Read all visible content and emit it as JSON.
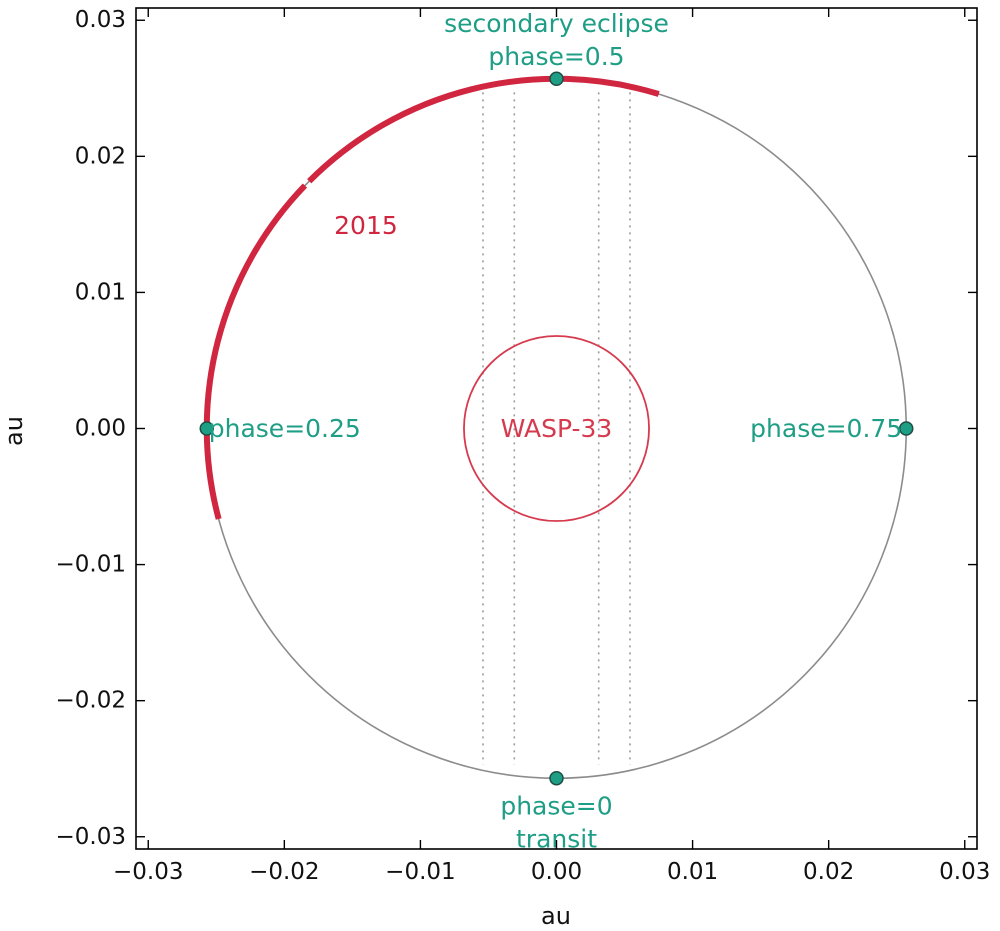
{
  "chart_data": {
    "type": "scatter",
    "xlabel": "au",
    "ylabel": "au",
    "xlim": [
      -0.0309,
      0.0309
    ],
    "ylim": [
      -0.0309,
      0.0309
    ],
    "x_ticks": [
      -0.03,
      -0.02,
      -0.01,
      0.0,
      0.01,
      0.02,
      0.03
    ],
    "x_tick_labels": [
      "−0.03",
      "−0.02",
      "−0.01",
      "0.00",
      "0.01",
      "0.02",
      "0.03"
    ],
    "y_ticks": [
      0.03,
      0.02,
      0.01,
      0.0,
      -0.01,
      -0.02,
      -0.03
    ],
    "y_tick_labels": [
      "0.03",
      "0.02",
      "0.01",
      "0.00",
      "−0.01",
      "−0.02",
      "−0.03"
    ],
    "grid": false,
    "orbit": {
      "radius": 0.0257,
      "color": "#8c8c8c"
    },
    "star": {
      "name": "WASP-33",
      "radius": 0.0068,
      "color": "#d63a4e"
    },
    "vertical_lines": {
      "x": [
        -0.0054,
        -0.0031,
        0.0031,
        0.0054
      ],
      "y_range": [
        -0.0247,
        0.0247
      ],
      "style": "dotted",
      "color": "#9a9a9a"
    },
    "observed_arcs": {
      "label": "2015",
      "color": "#d0263f",
      "segments": [
        {
          "angle_start_deg": 73,
          "angle_end_deg": 135
        },
        {
          "angle_start_deg": 136,
          "angle_end_deg": 195
        }
      ]
    },
    "phase_points": {
      "color": "#1f9e86",
      "edge_color": "#1e4d44",
      "points": [
        {
          "x": 0.0,
          "y": -0.0257,
          "label_lines": [
            "phase=0",
            "transit"
          ]
        },
        {
          "x": -0.0257,
          "y": 0.0,
          "label_lines": [
            "phase=0.25"
          ]
        },
        {
          "x": 0.0,
          "y": 0.0257,
          "label_lines": [
            "secondary eclipse",
            "phase=0.5"
          ]
        },
        {
          "x": 0.0257,
          "y": 0.0,
          "label_lines": [
            "phase=0.75"
          ]
        }
      ]
    }
  }
}
